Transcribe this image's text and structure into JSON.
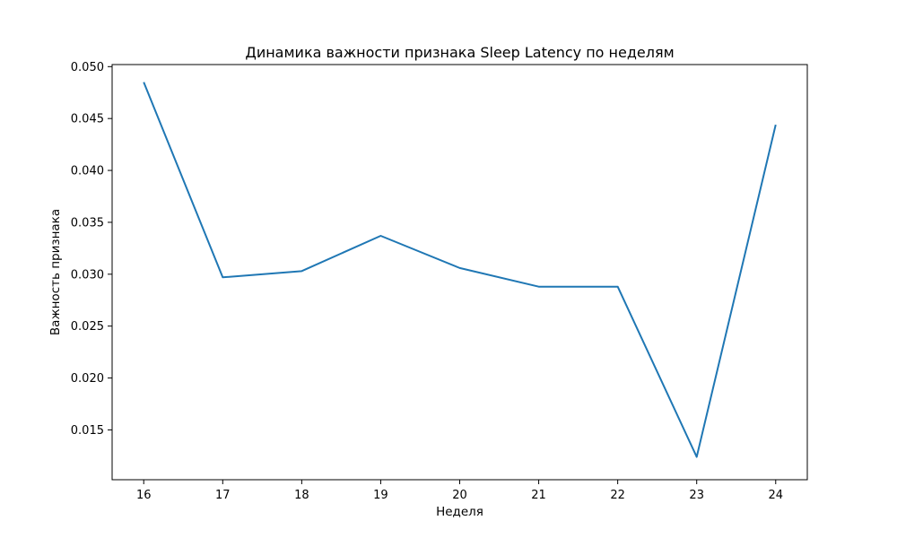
{
  "chart_data": {
    "type": "line",
    "title": "Динамика важности признака Sleep Latency по неделям",
    "xlabel": "Неделя",
    "ylabel": "Важность признака",
    "x": [
      16,
      17,
      18,
      19,
      20,
      21,
      22,
      23,
      24
    ],
    "xlim": [
      15.6,
      24.4
    ],
    "ylim": [
      0.0102,
      0.0502
    ],
    "x_ticks": [
      16,
      17,
      18,
      19,
      20,
      21,
      22,
      23,
      24
    ],
    "y_ticks": [
      0.015,
      0.02,
      0.025,
      0.03,
      0.035,
      0.04,
      0.045,
      0.05
    ],
    "y_tick_labels": [
      "0.015",
      "0.020",
      "0.025",
      "0.030",
      "0.035",
      "0.040",
      "0.045",
      "0.050"
    ],
    "grid": false,
    "series": [
      {
        "color": "#1f77b4",
        "values": [
          0.0485,
          0.0297,
          0.0303,
          0.0337,
          0.0306,
          0.0288,
          0.0288,
          0.0124,
          0.0444
        ]
      }
    ]
  }
}
